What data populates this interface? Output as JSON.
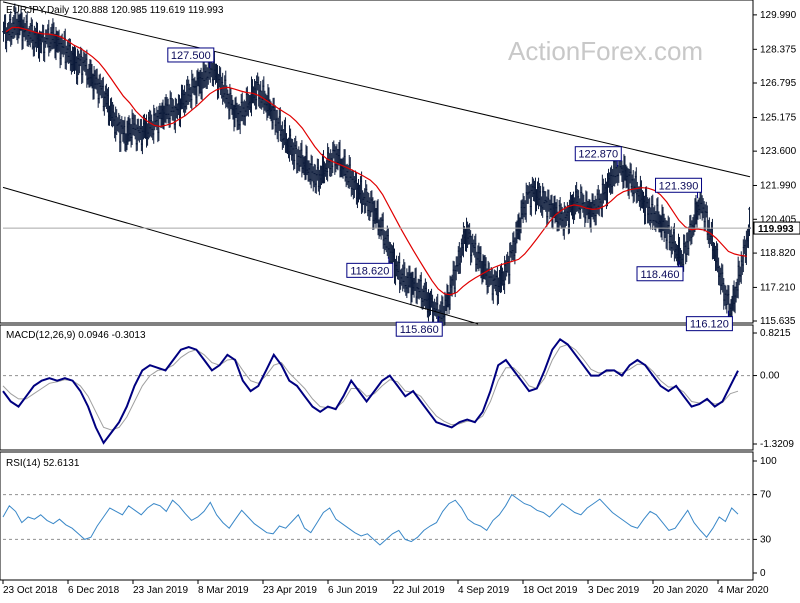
{
  "header": {
    "symbol_line": "EURJPY,Daily  120.888 120.985 119.619 119.993",
    "watermark": "ActionForex.com",
    "current_price": "119.993"
  },
  "colors": {
    "candle": "#0b1a3a",
    "ma": "#e00000",
    "trendline": "#000000",
    "macd": "#000080",
    "signal": "#a0a0a0",
    "rsi": "#3a88c8",
    "grid_dash": "#909090",
    "annotation_border": "#000080"
  },
  "chart_data": [
    {
      "type": "candlestick",
      "title": "EURJPY,Daily",
      "ohlc_latest": {
        "open": 120.888,
        "high": 120.985,
        "low": 119.619,
        "close": 119.993
      },
      "ylim": [
        115.635,
        130.5
      ],
      "y_ticks": [
        "129.990",
        "128.375",
        "126.795",
        "125.175",
        "123.600",
        "121.990",
        "120.405",
        "118.820",
        "117.210",
        "115.635"
      ],
      "x_tick_labels": [
        "23 Oct 2018",
        "6 Dec 2018",
        "23 Jan 2019",
        "8 Mar 2019",
        "23 Apr 2019",
        "6 Jun 2019",
        "22 Jul 2019",
        "4 Sep 2019",
        "18 Oct 2019",
        "3 Dec 2019",
        "20 Jan 2020",
        "4 Mar 2020"
      ],
      "closes": [
        129.2,
        129.6,
        129.4,
        129.1,
        128.9,
        128.7,
        128.8,
        129.0,
        128.6,
        128.4,
        128.0,
        127.6,
        127.8,
        127.2,
        126.8,
        126.5,
        125.8,
        125.0,
        124.6,
        124.3,
        124.8,
        124.4,
        124.6,
        124.8,
        125.0,
        125.3,
        125.6,
        125.4,
        125.9,
        126.3,
        126.6,
        126.8,
        127.2,
        127.5,
        126.9,
        126.4,
        125.7,
        125.2,
        125.5,
        125.9,
        126.5,
        126.2,
        125.8,
        125.2,
        124.6,
        124.0,
        123.6,
        123.2,
        123.0,
        122.6,
        122.3,
        122.7,
        123.1,
        123.4,
        122.9,
        122.5,
        122.0,
        121.6,
        121.2,
        120.8,
        120.2,
        119.4,
        118.6,
        118.0,
        117.6,
        117.4,
        117.2,
        116.9,
        116.5,
        116.1,
        115.9,
        116.6,
        117.6,
        118.6,
        119.8,
        119.2,
        118.6,
        118.0,
        117.6,
        117.3,
        117.6,
        118.4,
        119.4,
        120.6,
        121.5,
        121.7,
        121.4,
        121.1,
        120.8,
        120.6,
        120.4,
        120.9,
        121.3,
        121.1,
        120.7,
        120.9,
        121.4,
        122.0,
        122.6,
        122.87,
        122.4,
        122.1,
        121.6,
        121.1,
        120.7,
        120.5,
        120.1,
        119.6,
        119.0,
        118.46,
        119.4,
        120.4,
        121.39,
        120.3,
        119.2,
        118.0,
        116.8,
        116.12,
        117.4,
        118.8,
        119.993
      ],
      "moving_average": {
        "label": "",
        "period": 55
      },
      "annotations": [
        {
          "label": "127.500",
          "side": "above"
        },
        {
          "label": "118.620",
          "side": "below"
        },
        {
          "label": "115.860",
          "side": "below"
        },
        {
          "label": "122.870",
          "side": "above"
        },
        {
          "label": "121.390",
          "side": "above"
        },
        {
          "label": "118.460",
          "side": "below"
        },
        {
          "label": "116.120",
          "side": "below"
        }
      ]
    },
    {
      "type": "line",
      "title": "MACD(12,26,9) 0.0946 -0.3013",
      "ylim": [
        -1.3209,
        0.8215
      ],
      "y_ticks": [
        "0.8215",
        "0.00",
        "-1.3209"
      ],
      "current_macd": "0.0946",
      "current_signal": "-0.3013",
      "macd_values": [
        -0.3,
        -0.5,
        -0.6,
        -0.4,
        -0.2,
        -0.1,
        -0.05,
        -0.1,
        -0.05,
        -0.1,
        -0.3,
        -0.6,
        -1.0,
        -1.3,
        -1.1,
        -0.9,
        -0.6,
        -0.2,
        0.1,
        0.2,
        0.15,
        0.1,
        0.3,
        0.5,
        0.55,
        0.5,
        0.3,
        0.1,
        0.2,
        0.4,
        0.3,
        -0.1,
        -0.3,
        -0.2,
        0.1,
        0.4,
        0.2,
        -0.1,
        -0.2,
        -0.4,
        -0.6,
        -0.7,
        -0.6,
        -0.65,
        -0.4,
        -0.1,
        -0.3,
        -0.5,
        -0.3,
        -0.1,
        0.0,
        -0.2,
        -0.4,
        -0.3,
        -0.5,
        -0.7,
        -0.9,
        -0.95,
        -1.0,
        -0.9,
        -0.85,
        -0.9,
        -0.7,
        -0.3,
        0.2,
        0.3,
        0.1,
        -0.1,
        -0.3,
        -0.25,
        0.1,
        0.5,
        0.7,
        0.6,
        0.4,
        0.2,
        0.0,
        0.0,
        0.1,
        0.1,
        0.0,
        0.2,
        0.3,
        0.2,
        0.0,
        -0.2,
        -0.3,
        -0.2,
        -0.4,
        -0.6,
        -0.55,
        -0.45,
        -0.6,
        -0.5,
        -0.2,
        0.0946
      ],
      "signal_values": [
        -0.2,
        -0.35,
        -0.45,
        -0.45,
        -0.35,
        -0.25,
        -0.15,
        -0.12,
        -0.08,
        -0.1,
        -0.2,
        -0.4,
        -0.7,
        -1.0,
        -1.05,
        -1.0,
        -0.8,
        -0.5,
        -0.2,
        0.0,
        0.1,
        0.12,
        0.2,
        0.35,
        0.45,
        0.5,
        0.4,
        0.25,
        0.2,
        0.3,
        0.32,
        0.1,
        -0.1,
        -0.15,
        0.0,
        0.2,
        0.25,
        0.05,
        -0.1,
        -0.25,
        -0.45,
        -0.6,
        -0.62,
        -0.63,
        -0.5,
        -0.25,
        -0.25,
        -0.4,
        -0.35,
        -0.2,
        -0.08,
        -0.12,
        -0.3,
        -0.32,
        -0.4,
        -0.6,
        -0.78,
        -0.88,
        -0.95,
        -0.93,
        -0.88,
        -0.88,
        -0.78,
        -0.5,
        -0.1,
        0.15,
        0.15,
        0.0,
        -0.2,
        -0.25,
        -0.05,
        0.3,
        0.55,
        0.6,
        0.5,
        0.32,
        0.12,
        0.05,
        0.07,
        0.09,
        0.05,
        0.12,
        0.22,
        0.22,
        0.08,
        -0.1,
        -0.22,
        -0.22,
        -0.32,
        -0.5,
        -0.53,
        -0.48,
        -0.55,
        -0.52,
        -0.35,
        -0.3013
      ]
    },
    {
      "type": "line",
      "title": "RSI(14) 52.6131",
      "ylim": [
        0,
        100
      ],
      "y_ticks": [
        "100",
        "70",
        "30",
        "0"
      ],
      "levels": [
        70,
        30
      ],
      "current": "52.6131",
      "values": [
        50,
        60,
        55,
        45,
        50,
        48,
        52,
        47,
        44,
        48,
        43,
        40,
        35,
        30,
        32,
        42,
        50,
        58,
        55,
        52,
        60,
        56,
        52,
        58,
        62,
        60,
        55,
        65,
        60,
        53,
        47,
        50,
        55,
        63,
        52,
        45,
        40,
        48,
        56,
        50,
        44,
        40,
        36,
        35,
        42,
        40,
        46,
        52,
        40,
        36,
        45,
        54,
        58,
        48,
        44,
        40,
        36,
        33,
        35,
        30,
        25,
        30,
        35,
        38,
        30,
        28,
        32,
        38,
        42,
        45,
        55,
        62,
        65,
        58,
        48,
        44,
        42,
        38,
        47,
        52,
        60,
        70,
        66,
        62,
        60,
        56,
        54,
        50,
        56,
        62,
        58,
        54,
        52,
        58,
        62,
        66,
        60,
        54,
        50,
        46,
        42,
        40,
        48,
        55,
        52,
        45,
        38,
        40,
        48,
        56,
        45,
        38,
        32,
        40,
        50,
        46,
        58,
        52.6131
      ]
    }
  ]
}
